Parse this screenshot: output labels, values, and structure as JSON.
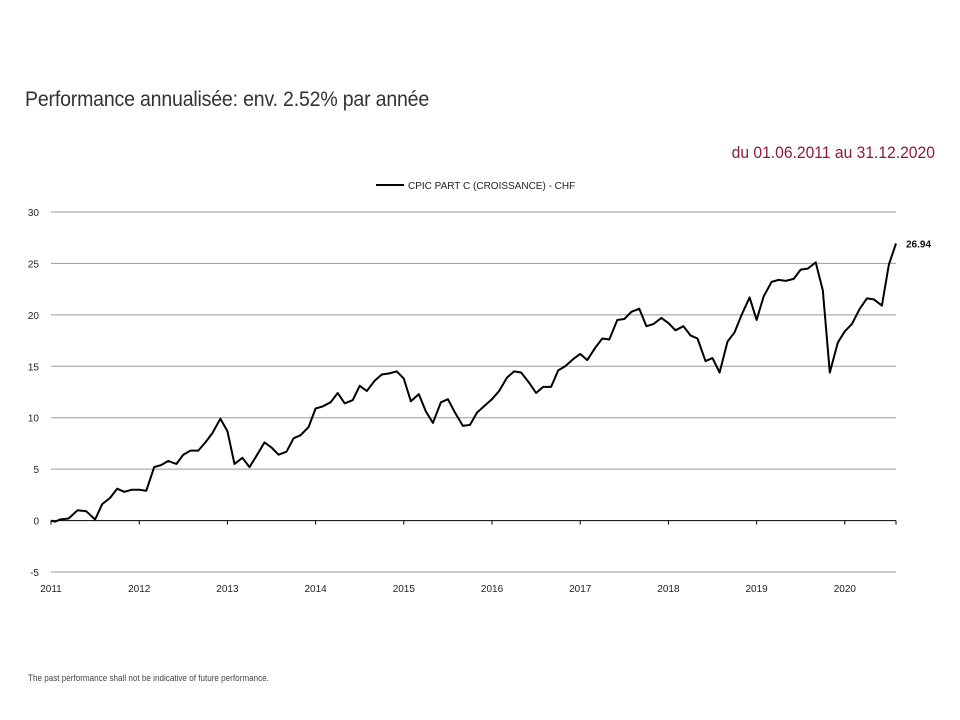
{
  "header": {
    "title": "Performance annualisée: env. 2.52% par année",
    "date_range": "du 01.06.2011 au 31.12.2020"
  },
  "footnote": "The past performance shall not be indicative of future performance.",
  "chart_data": {
    "type": "line",
    "title": "Performance annualisée: env. 2.52% par année",
    "xlabel": "",
    "ylabel": "",
    "ylim": [
      -5,
      30
    ],
    "xlim": [
      2011,
      2020.58
    ],
    "y_ticks": [
      "-5",
      "0",
      "5",
      "10",
      "15",
      "20",
      "25",
      "30"
    ],
    "x_ticks": [
      "2011",
      "2012",
      "2013",
      "2014",
      "2015",
      "2016",
      "2017",
      "2018",
      "2019",
      "2020"
    ],
    "grid": true,
    "legend": "top-center",
    "end_label": "26.94",
    "series": [
      {
        "name": "CPIC PART C (CROISSANCE) - CHF",
        "color": "#000000",
        "x": [
          2011.0,
          2011.05,
          2011.1,
          2011.2,
          2011.3,
          2011.4,
          2011.5,
          2011.58,
          2011.67,
          2011.75,
          2011.83,
          2011.92,
          2012.0,
          2012.08,
          2012.17,
          2012.25,
          2012.33,
          2012.42,
          2012.5,
          2012.58,
          2012.67,
          2012.75,
          2012.83,
          2012.92,
          2013.0,
          2013.08,
          2013.17,
          2013.25,
          2013.33,
          2013.42,
          2013.5,
          2013.58,
          2013.67,
          2013.75,
          2013.83,
          2013.92,
          2014.0,
          2014.08,
          2014.17,
          2014.25,
          2014.33,
          2014.42,
          2014.5,
          2014.58,
          2014.67,
          2014.75,
          2014.83,
          2014.92,
          2015.0,
          2015.08,
          2015.17,
          2015.25,
          2015.33,
          2015.42,
          2015.5,
          2015.58,
          2015.67,
          2015.75,
          2015.83,
          2015.92,
          2016.0,
          2016.08,
          2016.17,
          2016.25,
          2016.33,
          2016.42,
          2016.5,
          2016.58,
          2016.67,
          2016.75,
          2016.83,
          2016.92,
          2017.0,
          2017.08,
          2017.17,
          2017.25,
          2017.33,
          2017.42,
          2017.5,
          2017.58,
          2017.67,
          2017.75,
          2017.83,
          2017.92,
          2018.0,
          2018.08,
          2018.17,
          2018.25,
          2018.33,
          2018.42,
          2018.5,
          2018.58,
          2018.67,
          2018.75,
          2018.83,
          2018.92,
          2019.0,
          2019.08,
          2019.17,
          2019.25,
          2019.33,
          2019.42,
          2019.5,
          2019.58,
          2019.67,
          2019.75,
          2019.83,
          2019.92,
          2020.0,
          2020.08,
          2020.17,
          2020.25,
          2020.33,
          2020.42,
          2020.5,
          2020.58
        ],
        "values": [
          0.0,
          -0.1,
          0.1,
          0.2,
          1.0,
          0.9,
          0.1,
          1.6,
          2.2,
          3.1,
          2.8,
          3.0,
          3.0,
          2.9,
          5.2,
          5.4,
          5.8,
          5.5,
          6.4,
          6.8,
          6.8,
          7.6,
          8.5,
          9.9,
          8.7,
          5.5,
          6.1,
          5.2,
          6.3,
          7.6,
          7.1,
          6.4,
          6.7,
          8.0,
          8.3,
          9.1,
          10.9,
          11.1,
          11.5,
          12.4,
          11.4,
          11.7,
          13.1,
          12.6,
          13.6,
          14.2,
          14.3,
          14.5,
          13.8,
          11.6,
          12.3,
          10.6,
          9.5,
          11.5,
          11.8,
          10.5,
          9.2,
          9.3,
          10.5,
          11.2,
          11.8,
          12.6,
          13.9,
          14.5,
          14.4,
          13.4,
          12.4,
          13.0,
          13.0,
          14.6,
          15.0,
          15.7,
          16.2,
          15.6,
          16.8,
          17.7,
          17.6,
          19.5,
          19.6,
          20.3,
          20.6,
          18.9,
          19.1,
          19.7,
          19.2,
          18.5,
          18.9,
          18.0,
          17.7,
          15.5,
          15.8,
          14.4,
          17.4,
          18.3,
          20.0,
          21.7,
          19.5,
          21.8,
          23.2,
          23.4,
          23.3,
          23.5,
          24.4,
          24.5,
          25.1,
          22.4,
          14.4,
          17.3,
          18.4,
          19.1,
          20.6,
          21.6,
          21.5,
          20.9,
          24.9,
          26.94
        ]
      }
    ]
  }
}
